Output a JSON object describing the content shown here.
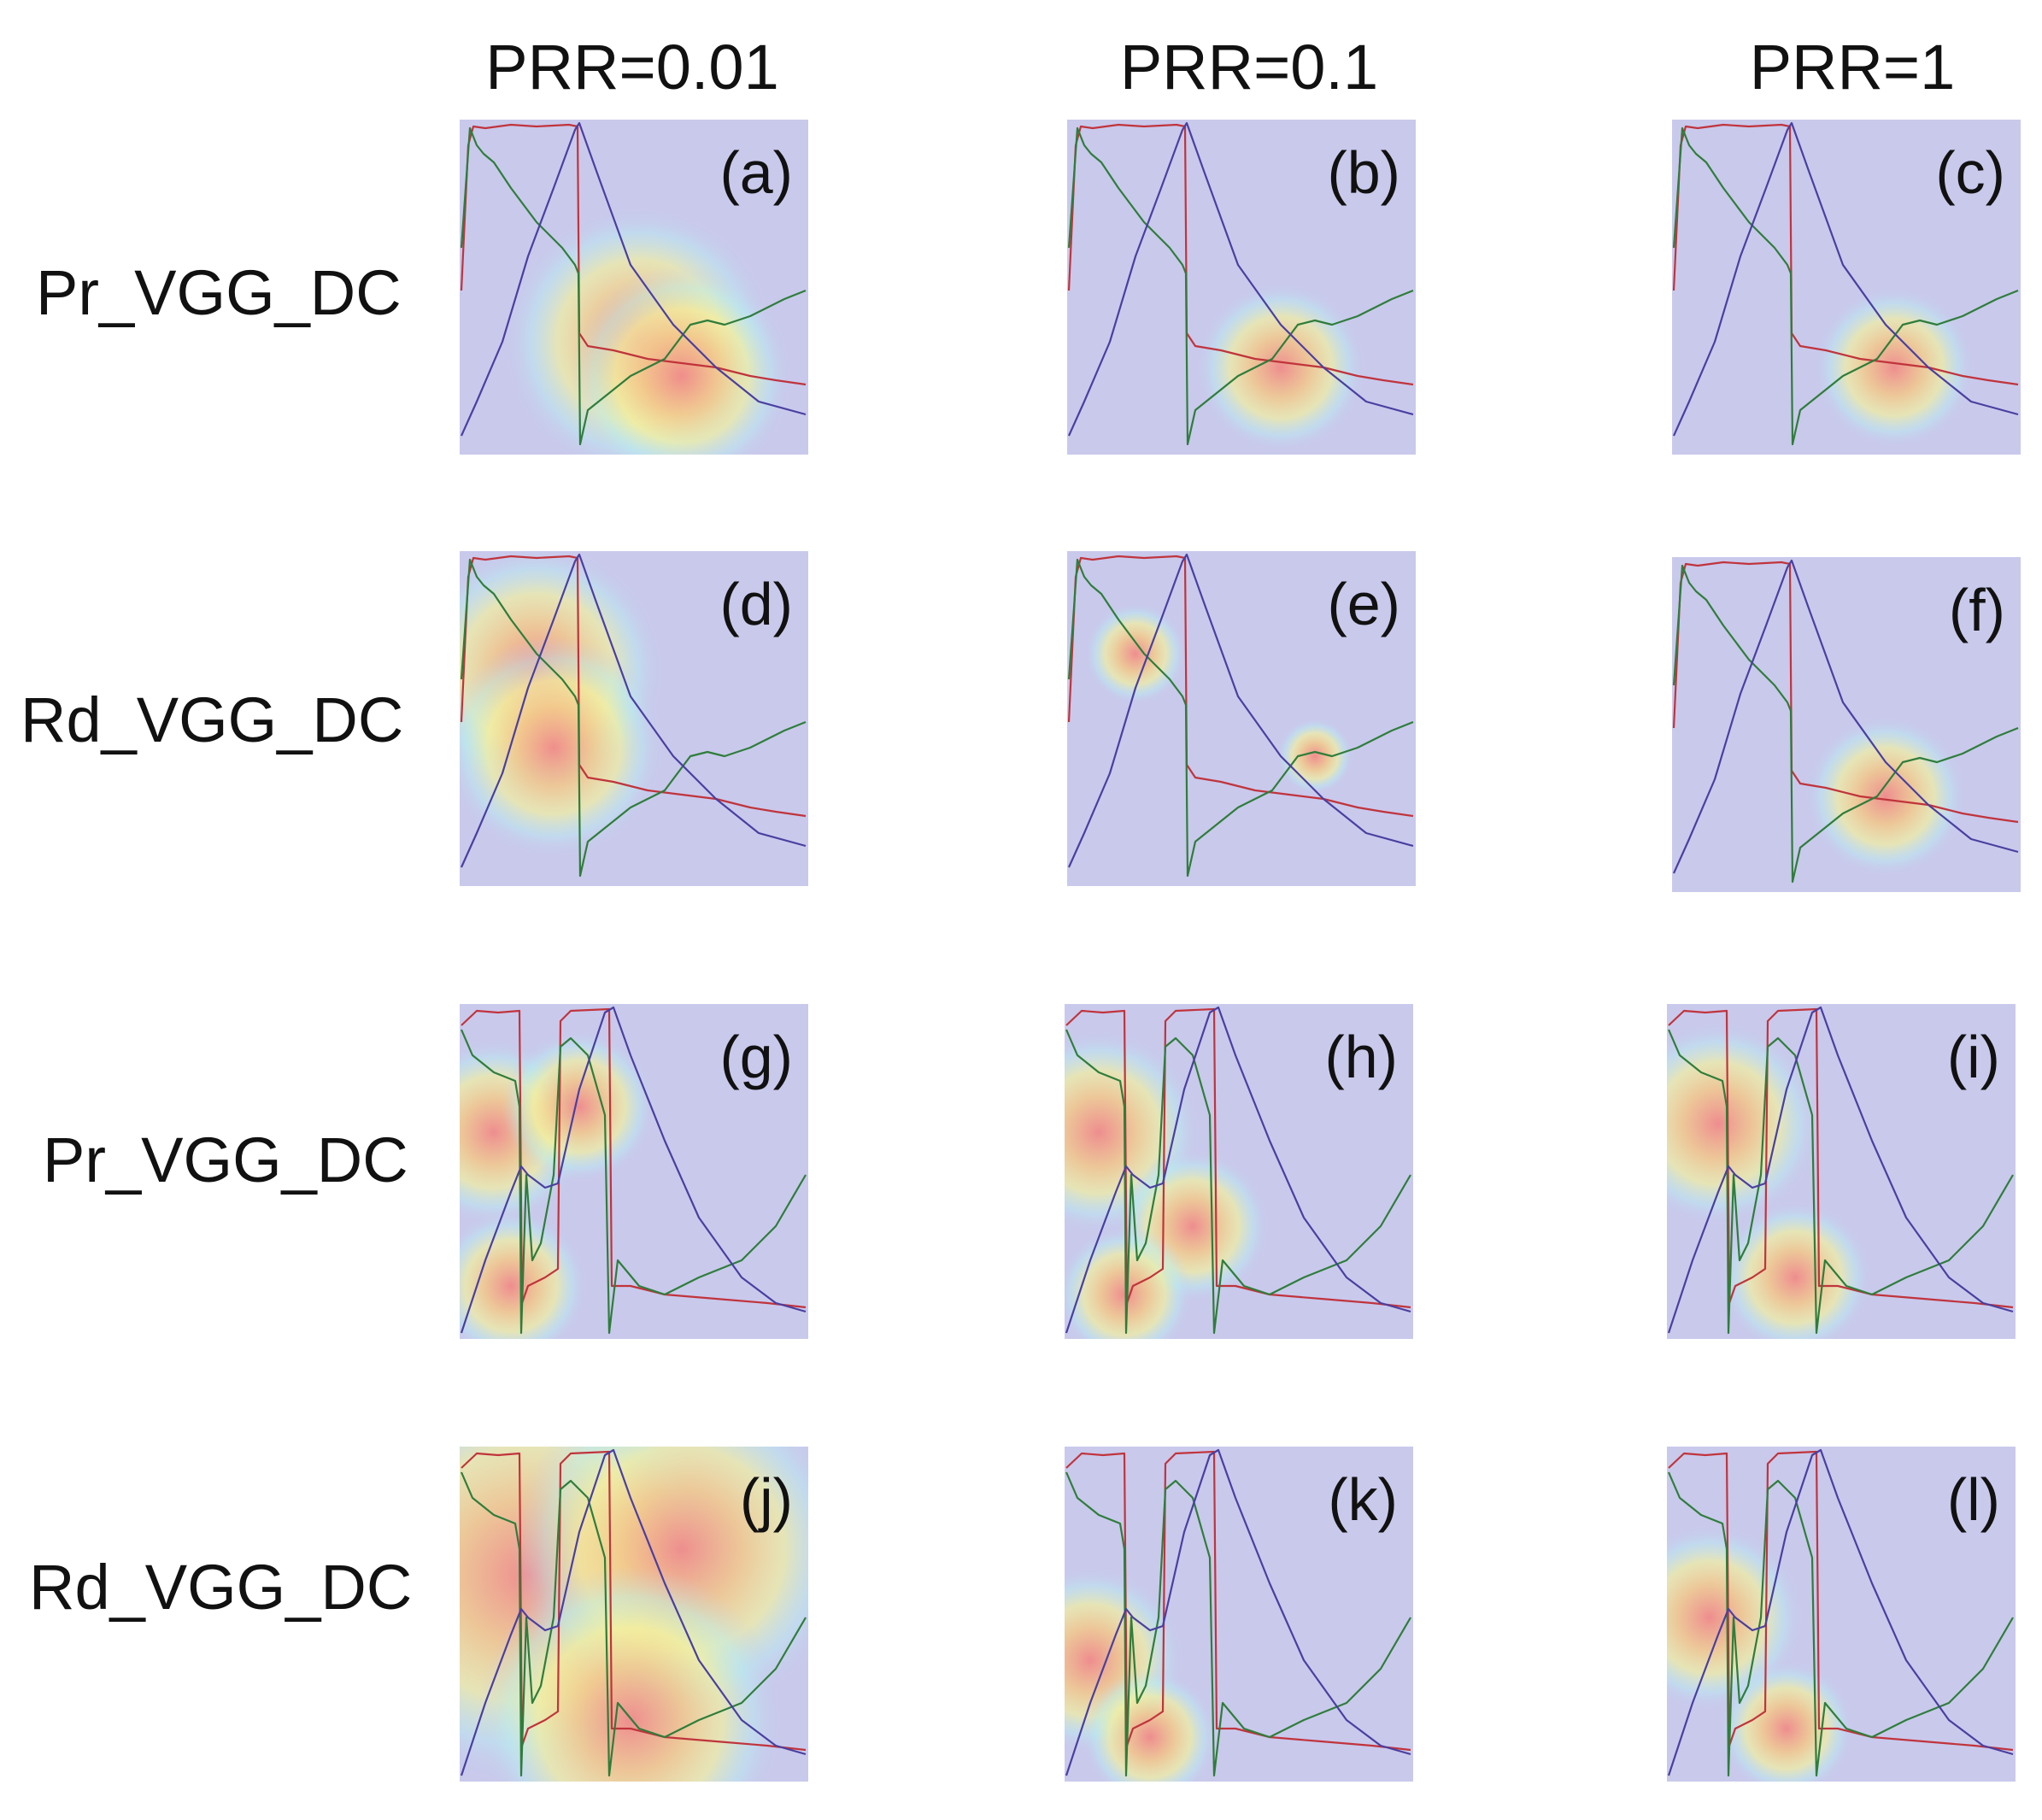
{
  "column_headers": [
    "PRR=0.01",
    "PRR=0.1",
    "PRR=1"
  ],
  "row_labels": [
    "Pr_VGG_DC",
    "Rd_VGG_DC",
    "Pr_VGG_DC",
    "Rd_VGG_DC"
  ],
  "panels": [
    {
      "label": "(a)",
      "type": "single"
    },
    {
      "label": "(b)",
      "type": "single"
    },
    {
      "label": "(c)",
      "type": "single"
    },
    {
      "label": "(d)",
      "type": "single"
    },
    {
      "label": "(e)",
      "type": "single"
    },
    {
      "label": "(f)",
      "type": "single"
    },
    {
      "label": "(g)",
      "type": "double"
    },
    {
      "label": "(h)",
      "type": "double"
    },
    {
      "label": "(i)",
      "type": "double"
    },
    {
      "label": "(j)",
      "type": "double"
    },
    {
      "label": "(k)",
      "type": "double"
    },
    {
      "label": "(l)",
      "type": "double"
    }
  ],
  "colors": {
    "background_heat": "#c9c9ec",
    "red_curve": "#c0343c",
    "green_curve": "#2f7d3b",
    "blue_curve": "#4a3fa0"
  }
}
